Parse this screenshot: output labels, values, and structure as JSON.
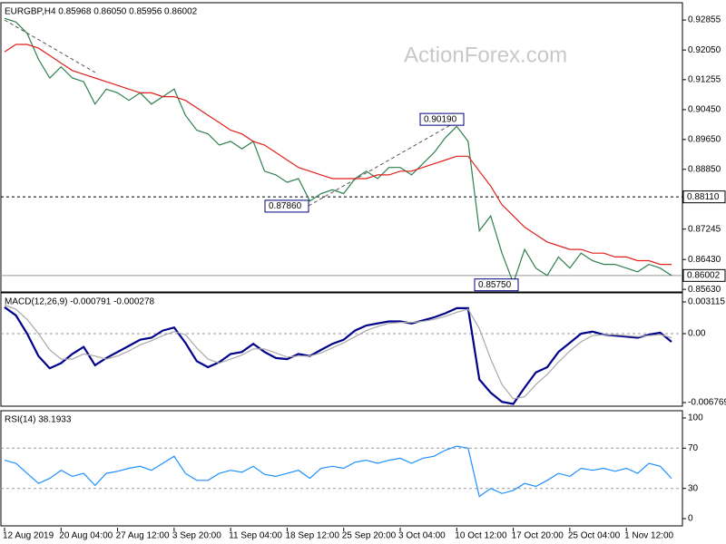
{
  "watermark": "ActionForex.com",
  "chart_data": [
    {
      "type": "line",
      "title": "EURGBP,H4 0.85968 0.86050 0.85956 0.86002",
      "ylim": [
        0.8556,
        0.9327
      ],
      "yticks": [
        0.92855,
        {
          "value": 0.9205,
          "label": "0.92050"
        },
        0.91255,
        {
          "value": 0.9045,
          "label": "0.90450"
        },
        {
          "value": 0.8965,
          "label": "0.89650"
        },
        {
          "value": 0.8885,
          "label": "0.88850"
        },
        0.87245,
        {
          "value": 0.8643,
          "label": "0.86430"
        },
        {
          "value": 0.8563,
          "label": "0.85630"
        }
      ],
      "series": [
        {
          "color": "#2f7f4f",
          "values": [
            0.929,
            0.928,
            0.925,
            0.918,
            0.913,
            0.916,
            0.913,
            0.912,
            0.906,
            0.91,
            0.909,
            0.907,
            0.909,
            0.906,
            0.908,
            0.91,
            0.903,
            0.899,
            0.898,
            0.895,
            0.896,
            0.894,
            0.896,
            0.888,
            0.887,
            0.885,
            0.886,
            0.88,
            0.882,
            0.883,
            0.882,
            0.886,
            0.888,
            0.886,
            0.889,
            0.889,
            0.887,
            0.89,
            0.893,
            0.897,
            0.9,
            0.896,
            0.872,
            0.876,
            0.866,
            0.858,
            0.867,
            0.862,
            0.86,
            0.865,
            0.862,
            0.866,
            0.864,
            0.863,
            0.863,
            0.862,
            0.861,
            0.863,
            0.862,
            0.86
          ]
        },
        {
          "color": "#e0201b",
          "values": [
            0.92,
            0.922,
            0.922,
            0.921,
            0.919,
            0.917,
            0.915,
            0.914,
            0.913,
            0.912,
            0.911,
            0.91,
            0.909,
            0.909,
            0.908,
            0.908,
            0.907,
            0.905,
            0.903,
            0.901,
            0.899,
            0.898,
            0.896,
            0.895,
            0.893,
            0.891,
            0.889,
            0.888,
            0.887,
            0.886,
            0.886,
            0.886,
            0.886,
            0.887,
            0.887,
            0.888,
            0.888,
            0.889,
            0.89,
            0.891,
            0.892,
            0.892,
            0.888,
            0.884,
            0.879,
            0.876,
            0.873,
            0.871,
            0.869,
            0.868,
            0.867,
            0.867,
            0.866,
            0.866,
            0.865,
            0.865,
            0.864,
            0.864,
            0.863,
            0.863
          ]
        }
      ],
      "levels": [
        {
          "value": 0.8811,
          "label": "0.88110",
          "style": "dashed"
        },
        {
          "value": 0.86002,
          "label": "0.86002",
          "style": "solid"
        }
      ],
      "annotations": [
        {
          "value": 0.9019,
          "label": "0.90190"
        },
        {
          "value": 0.8786,
          "label": "0.87860"
        },
        {
          "value": 0.8575,
          "label": "0.85750"
        }
      ]
    },
    {
      "type": "line",
      "title": "MACD(12,26,9) -0.000791 -0.000278",
      "ylim": [
        -0.007125,
        0.003827
      ],
      "yticks": [
        0.003115,
        {
          "value": 0,
          "label": "0.00"
        },
        -0.006769
      ],
      "levels": [
        0
      ],
      "series": [
        {
          "color": "#00008b",
          "values": [
            0.0026,
            0.0018,
            0.0,
            -0.0022,
            -0.0034,
            -0.0029,
            -0.002,
            -0.0013,
            -0.0031,
            -0.0024,
            -0.0018,
            -0.0012,
            -0.0006,
            -0.0004,
            0.0003,
            0.0006,
            -0.0009,
            -0.0027,
            -0.0033,
            -0.0028,
            -0.002,
            -0.0018,
            -0.001,
            -0.0018,
            -0.0024,
            -0.0025,
            -0.002,
            -0.0022,
            -0.0016,
            -0.001,
            -0.0006,
            0.0003,
            0.0008,
            0.001,
            0.0012,
            0.0012,
            0.001,
            0.0013,
            0.0016,
            0.002,
            0.0025,
            0.0025,
            -0.0045,
            -0.0058,
            -0.0067,
            -0.0069,
            -0.0053,
            -0.0038,
            -0.0033,
            -0.0018,
            -0.0009,
            0.0,
            0.0002,
            -0.0001,
            -0.0002,
            -0.0003,
            -0.0004,
            -0.0001,
            0.0001,
            -0.0008
          ]
        },
        {
          "color": "#a9a9a9",
          "values": [
            0.0028,
            0.0024,
            0.0014,
            0.0,
            -0.0016,
            -0.0025,
            -0.0025,
            -0.002,
            -0.0022,
            -0.0025,
            -0.0022,
            -0.0017,
            -0.0011,
            -0.0007,
            -0.0002,
            0.0002,
            -0.0001,
            -0.0014,
            -0.0025,
            -0.0029,
            -0.0025,
            -0.0021,
            -0.0015,
            -0.0015,
            -0.0019,
            -0.0023,
            -0.0022,
            -0.0022,
            -0.0019,
            -0.0014,
            -0.0009,
            -0.0003,
            0.0003,
            0.0007,
            0.001,
            0.0011,
            0.0011,
            0.0012,
            0.0014,
            0.0017,
            0.0021,
            0.0024,
            0.0005,
            -0.0025,
            -0.005,
            -0.0064,
            -0.0062,
            -0.005,
            -0.004,
            -0.0028,
            -0.0017,
            -0.0008,
            -0.0002,
            -0.0001,
            -0.0001,
            -0.0002,
            -0.0003,
            -0.0002,
            -0.0001,
            -0.0004
          ]
        }
      ]
    },
    {
      "type": "line",
      "title": "RSI(14) 38.1933",
      "ylim": [
        -7.2,
        105.4
      ],
      "yticks": [
        100,
        70,
        30,
        0
      ],
      "levels": [
        70,
        30
      ],
      "categories": [
        "12 Aug 2019",
        null,
        null,
        null,
        null,
        "20 Aug 04:00",
        null,
        null,
        null,
        null,
        "27 Aug 12:00",
        null,
        null,
        null,
        null,
        "3 Sep 20:00",
        null,
        null,
        null,
        null,
        "11 Sep 04:00",
        null,
        null,
        null,
        null,
        "18 Sep 12:00",
        null,
        null,
        null,
        null,
        "25 Sep 20:00",
        null,
        null,
        null,
        null,
        "3 Oct 04:00",
        null,
        null,
        null,
        null,
        "10 Oct 12:00",
        null,
        null,
        null,
        null,
        "17 Oct 20:00",
        null,
        null,
        null,
        null,
        "25 Oct 04:00",
        null,
        null,
        null,
        null,
        "1 Nov 12:00",
        null,
        null,
        null,
        null
      ],
      "series": [
        {
          "color": "#1e90ff",
          "values": [
            58,
            55,
            45,
            35,
            40,
            48,
            42,
            45,
            33,
            45,
            47,
            50,
            52,
            48,
            55,
            62,
            45,
            38,
            38,
            45,
            48,
            46,
            52,
            44,
            42,
            45,
            48,
            40,
            50,
            52,
            50,
            56,
            58,
            55,
            58,
            60,
            55,
            60,
            62,
            68,
            72,
            70,
            22,
            30,
            25,
            28,
            35,
            32,
            38,
            45,
            42,
            50,
            48,
            50,
            47,
            50,
            45,
            55,
            52,
            40
          ]
        }
      ]
    }
  ]
}
